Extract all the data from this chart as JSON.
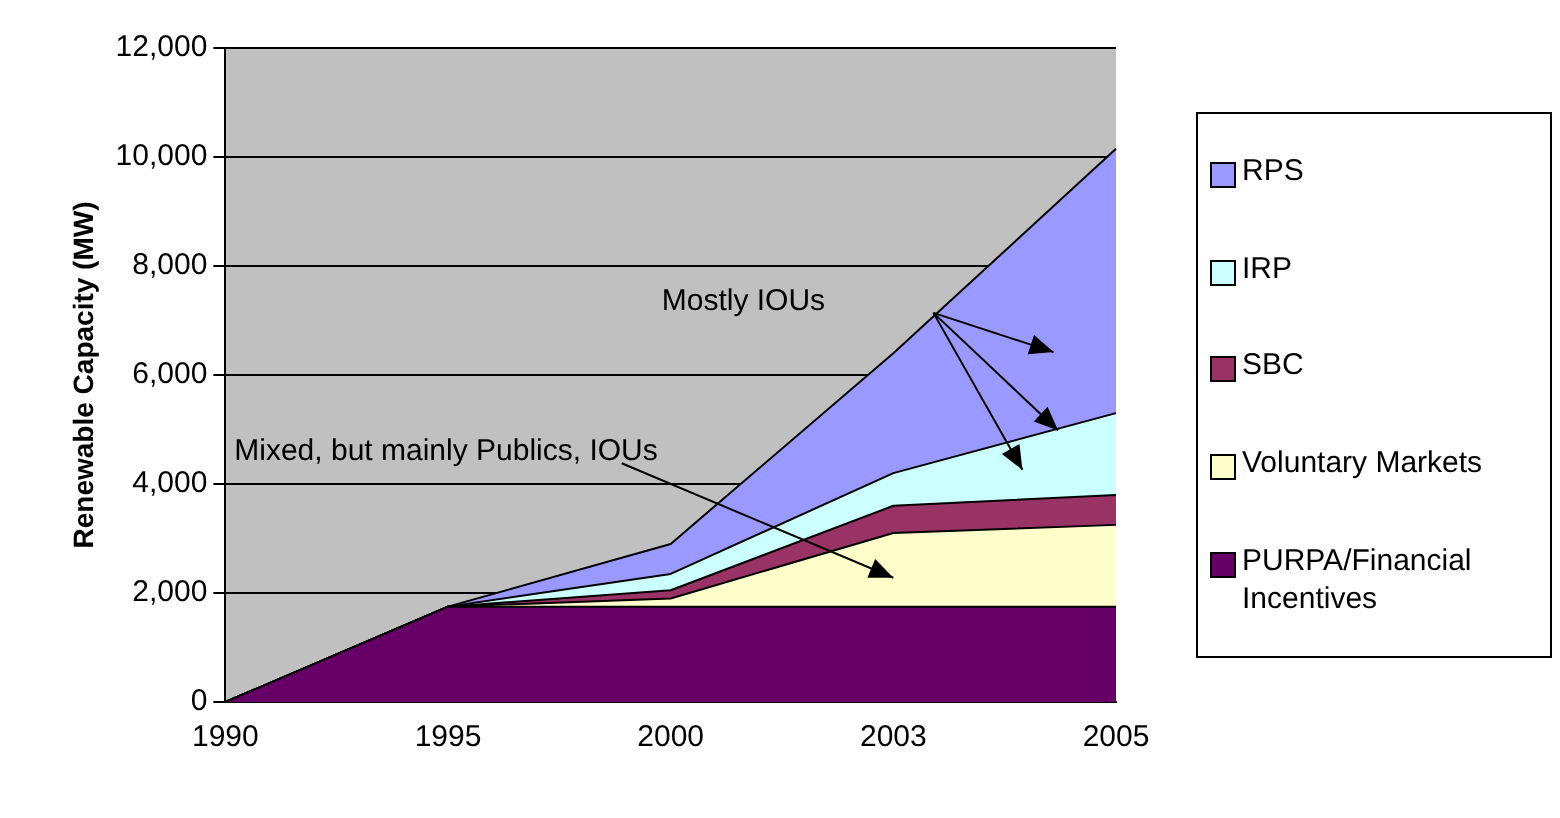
{
  "chart_data": {
    "type": "area",
    "stacked": true,
    "ylabel": "Renewable Capacity (MW)",
    "categories": [
      "1990",
      "1995",
      "2000",
      "2003",
      "2005"
    ],
    "series": [
      {
        "name": "PURPA/Financial Incentives",
        "color": "#660066",
        "values": [
          0,
          1750,
          1750,
          1750,
          1750
        ]
      },
      {
        "name": "Voluntary Markets",
        "color": "#ffffcc",
        "values": [
          0,
          0,
          150,
          1350,
          1500
        ]
      },
      {
        "name": "SBC",
        "color": "#993366",
        "values": [
          0,
          0,
          150,
          500,
          550
        ]
      },
      {
        "name": "IRP",
        "color": "#ccffff",
        "values": [
          0,
          0,
          300,
          600,
          1500
        ]
      },
      {
        "name": "RPS",
        "color": "#9999ff",
        "values": [
          0,
          0,
          550,
          2200,
          4850
        ]
      }
    ],
    "ylim": [
      0,
      12000
    ],
    "yticks": [
      0,
      {
        "value": 2000,
        "label": "2,000"
      },
      {
        "value": 4000,
        "label": "4,000"
      },
      {
        "value": 6000,
        "label": "6,000"
      },
      {
        "value": 8000,
        "label": "8,000"
      },
      {
        "value": 10000,
        "label": "10,000"
      },
      {
        "value": 12000,
        "label": "12,000"
      }
    ],
    "grid": "y",
    "legend": "right",
    "marker": "none",
    "annotations": [
      "Mostly IOUs",
      "Mixed, but mainly Publics, IOUs"
    ]
  }
}
